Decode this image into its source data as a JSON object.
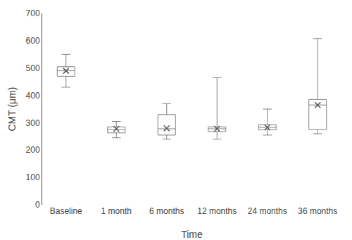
{
  "chart_data": {
    "type": "box",
    "categories": [
      "Baseline",
      "1 month",
      "6 months",
      "12 months",
      "24 months",
      "36 months"
    ],
    "boxes": {
      "q1": [
        470,
        263,
        255,
        268,
        274,
        275
      ],
      "q3": [
        505,
        285,
        330,
        285,
        293,
        385
      ],
      "med": [
        490,
        275,
        278,
        278,
        283,
        365
      ],
      "mean": [
        490,
        278,
        280,
        278,
        283,
        365
      ],
      "whislo": [
        430,
        245,
        240,
        240,
        255,
        260
      ],
      "whishi": [
        550,
        305,
        370,
        465,
        350,
        608
      ]
    },
    "xlabel": "Time",
    "ylabel": "CMT (μm)",
    "ylim": [
      0,
      700
    ],
    "yticks": [
      0,
      100,
      200,
      300,
      400,
      500,
      600,
      700
    ],
    "color": "#808080",
    "marker": "x",
    "grid": false
  }
}
